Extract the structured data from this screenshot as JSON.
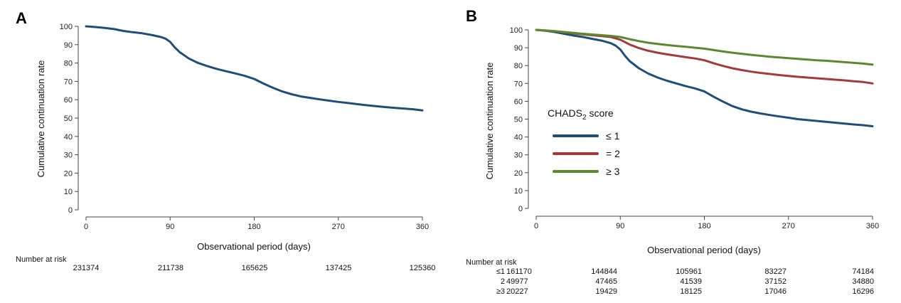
{
  "chart_data": [
    {
      "panel": "A",
      "type": "line",
      "xlabel": "Observational period (days)",
      "ylabel": "Cumulative continuation rate",
      "xlim": [
        0,
        360
      ],
      "ylim": [
        0,
        100
      ],
      "xticks": [
        0,
        90,
        180,
        270,
        360
      ],
      "yticks": [
        0,
        10,
        20,
        30,
        40,
        50,
        60,
        70,
        80,
        90,
        100
      ],
      "series": [
        {
          "name": "",
          "color": "#1f4e79",
          "x": [
            0,
            10,
            20,
            30,
            40,
            50,
            60,
            70,
            80,
            85,
            90,
            95,
            100,
            110,
            120,
            130,
            140,
            150,
            160,
            170,
            180,
            190,
            200,
            210,
            220,
            230,
            240,
            250,
            260,
            270,
            280,
            290,
            300,
            310,
            320,
            330,
            340,
            350,
            360
          ],
          "y": [
            100,
            99.6,
            99.1,
            98.5,
            97.5,
            96.8,
            96.2,
            95.3,
            94.2,
            93.3,
            91.5,
            88.5,
            86,
            82.5,
            80,
            78.3,
            76.8,
            75.5,
            74.3,
            73,
            71.3,
            68.8,
            66.5,
            64.5,
            63,
            61.8,
            61,
            60.2,
            59.5,
            58.8,
            58.2,
            57.6,
            57,
            56.5,
            56,
            55.6,
            55.2,
            54.8,
            54.2
          ]
        }
      ],
      "risk_table": {
        "title": "Number at risk",
        "rows": [
          {
            "label": "",
            "values": [
              "231374",
              "211738",
              "165625",
              "137425",
              "125360"
            ]
          }
        ]
      }
    },
    {
      "panel": "B",
      "type": "line",
      "xlabel": "Observational period (days)",
      "ylabel": "Cumulative continuation rate",
      "xlim": [
        0,
        360
      ],
      "ylim": [
        0,
        100
      ],
      "xticks": [
        0,
        90,
        180,
        270,
        360
      ],
      "yticks": [
        0,
        10,
        20,
        30,
        40,
        50,
        60,
        70,
        80,
        90,
        100
      ],
      "legend": {
        "title_main": "CHADS",
        "title_sub": "2",
        "title_rest": " score",
        "placement": "center-left"
      },
      "series": [
        {
          "name": "≤ 1",
          "color": "#1f4e79",
          "x": [
            0,
            10,
            20,
            30,
            40,
            50,
            60,
            70,
            80,
            85,
            90,
            95,
            100,
            110,
            120,
            130,
            140,
            150,
            160,
            170,
            180,
            190,
            200,
            210,
            220,
            230,
            240,
            250,
            260,
            270,
            280,
            290,
            300,
            310,
            320,
            330,
            340,
            350,
            360
          ],
          "y": [
            100,
            99.5,
            98.8,
            97.8,
            96.8,
            96,
            95,
            94,
            92.5,
            91.2,
            89,
            85.5,
            82.5,
            78.5,
            75.5,
            73.3,
            71.5,
            70,
            68.5,
            67.2,
            65.5,
            62.5,
            59.8,
            57.3,
            55.5,
            54.2,
            53.2,
            52.3,
            51.5,
            50.8,
            50,
            49.5,
            49,
            48.5,
            48,
            47.5,
            47,
            46.6,
            46
          ]
        },
        {
          "name": "= 2",
          "color": "#a23b3b",
          "x": [
            0,
            10,
            20,
            30,
            40,
            50,
            60,
            70,
            80,
            90,
            100,
            110,
            120,
            130,
            140,
            150,
            160,
            170,
            180,
            190,
            200,
            210,
            220,
            230,
            240,
            250,
            260,
            270,
            280,
            290,
            300,
            310,
            320,
            330,
            340,
            350,
            360
          ],
          "y": [
            100,
            99.6,
            99.2,
            98.6,
            98,
            97.5,
            97,
            96.5,
            96,
            94.5,
            91.8,
            89.8,
            88.3,
            87.2,
            86.3,
            85.5,
            84.7,
            84,
            83,
            81.3,
            79.8,
            78.5,
            77.5,
            76.6,
            75.9,
            75.3,
            74.7,
            74.2,
            73.7,
            73.3,
            72.9,
            72.5,
            72.1,
            71.7,
            71.2,
            70.8,
            70
          ]
        },
        {
          "name": "≥ 3",
          "color": "#5b8a2e",
          "x": [
            0,
            10,
            20,
            30,
            40,
            50,
            60,
            70,
            80,
            90,
            100,
            110,
            120,
            130,
            140,
            150,
            160,
            170,
            180,
            190,
            200,
            210,
            220,
            230,
            240,
            250,
            260,
            270,
            280,
            290,
            300,
            310,
            320,
            330,
            340,
            350,
            360
          ],
          "y": [
            100,
            99.7,
            99.3,
            98.8,
            98.3,
            97.8,
            97.4,
            97,
            96.6,
            96,
            94.8,
            93.7,
            92.8,
            92.1,
            91.5,
            91,
            90.5,
            90,
            89.5,
            88.7,
            87.9,
            87.2,
            86.6,
            86,
            85.5,
            85,
            84.6,
            84.2,
            83.8,
            83.4,
            83,
            82.7,
            82.3,
            81.9,
            81.5,
            81.1,
            80.5
          ]
        }
      ],
      "risk_table": {
        "title": "Number at risk",
        "rows": [
          {
            "label": "≤1",
            "values": [
              "161170",
              "144844",
              "105961",
              "83227",
              "74184"
            ]
          },
          {
            "label": "2",
            "values": [
              "49977",
              "47465",
              "41539",
              "37152",
              "34880"
            ]
          },
          {
            "label": "≥3",
            "values": [
              "20227",
              "19429",
              "18125",
              "17046",
              "16296"
            ]
          }
        ]
      }
    }
  ]
}
